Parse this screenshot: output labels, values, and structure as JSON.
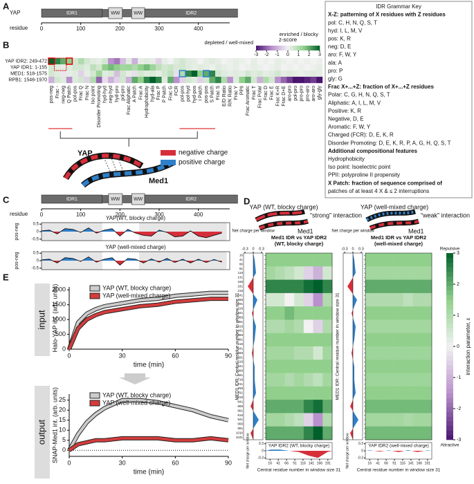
{
  "panel_labels": [
    "A",
    "B",
    "C",
    "D",
    "E"
  ],
  "panel_a": {
    "protein": "YAP",
    "domains": [
      "IDR1",
      "WW",
      "WW",
      "IDR2"
    ],
    "axis_label": "residue",
    "xlim": [
      0,
      480
    ],
    "xticks": [
      0,
      100,
      200,
      300,
      400
    ]
  },
  "key": {
    "lines": [
      {
        "text": "IDR Grammar Key",
        "bold": false
      },
      {
        "text": "X-Z: patterning of X residues with Z residues",
        "bold": true
      },
      {
        "text": "pol: C, H, N, Q, S, T",
        "bold": false
      },
      {
        "text": "hyd: I, L, M, V",
        "bold": false
      },
      {
        "text": "pos: K, R",
        "bold": false
      },
      {
        "text": "neg: D, E",
        "bold": false
      },
      {
        "text": "aro: F, W, Y",
        "bold": false
      },
      {
        "text": "ala: A",
        "bold": false
      },
      {
        "text": "pro: P",
        "bold": false
      },
      {
        "text": "gly: G",
        "bold": false
      },
      {
        "text": "Frac X+...+Z: fraction of X+...+Z residues",
        "bold": true
      },
      {
        "text": "Polar: C, G, H, N, Q, S, T",
        "bold": false
      },
      {
        "text": "Aliphatic: A, I, L, M, V",
        "bold": false
      },
      {
        "text": "Positive: K, R",
        "bold": false
      },
      {
        "text": "Negative, D, E",
        "bold": false
      },
      {
        "text": "Aromatic: F, W, Y",
        "bold": false
      },
      {
        "text": "Charged (FCR): D, E, K, R",
        "bold": false
      },
      {
        "text": "Disorder Promoting: D, E, K, R, P, A, G, H, Q, S, T",
        "bold": false
      },
      {
        "text": "Additional compositional features",
        "bold": true
      },
      {
        "text": "Hydrophobicity",
        "bold": false
      },
      {
        "text": "Iso point: Isoelectric point",
        "bold": false
      },
      {
        "text": "PPII: polyproline II propensity",
        "bold": false
      },
      {
        "text": "X Patch: fraction of sequence comprised of",
        "bold": true
      },
      {
        "text": "patches of at least 4 X &  ≤ 2 interruptions",
        "bold": false
      }
    ]
  },
  "panel_b": {
    "type": "heatmap",
    "rows": [
      "YAP IDR2: 249-472",
      "YAP IDR1: 1-155",
      "MED1: 518-1575",
      "RPB1: 1546-1970"
    ],
    "columns": [
      "pos-neg",
      "Frac -",
      "neg-neg",
      "Q Patch",
      "pol-pos",
      "Frac Q",
      "Frac N",
      "Iso point",
      "Disorder Promoting",
      "hyd-hyd",
      "neg-hyd",
      "hyd-pro",
      "pol-pro",
      "Frac Aliphatic",
      "A Patch",
      "Frac A",
      "Hydrophobicity",
      "hyd-ala",
      "Frac P",
      "P Patch",
      "Frac G",
      "FCR",
      "pol-pos",
      "pol-hyd",
      "hyd-pos",
      "I Patch",
      "pos-pos",
      "S Patch",
      "Frac S",
      "E/D Ratio",
      "R/K Ratio",
      "Frac Y",
      "PPII",
      "Frac Aromatic",
      "Frac T",
      "Frac Polar",
      "Frac D",
      "Frac E",
      "Frac K+R",
      "Frac D+E",
      "aro-pro",
      "pol-pro",
      "pro-pro",
      "pro-aro",
      "aro-aro",
      "gly-gly"
    ],
    "values": [
      [
        3,
        2.5,
        2,
        1.5,
        0.5,
        1,
        0.5,
        0.3,
        0.2,
        0.5,
        -1.5,
        -1.8,
        -0.8,
        0.3,
        -1,
        0.2,
        0.3,
        0.2,
        -0.5,
        0.2,
        0,
        0.3,
        0.5,
        0.3,
        0.2,
        0,
        0.2,
        0.3,
        0.2,
        0,
        0.1,
        0.2,
        0.1,
        0,
        0.2,
        0,
        0.1,
        0,
        0.2,
        0.1,
        0,
        0.1,
        0,
        0.1,
        0,
        0.1
      ],
      [
        0.5,
        0.3,
        0.2,
        0.3,
        0.5,
        0.5,
        0.3,
        0.8,
        0.5,
        1.5,
        1.8,
        1.5,
        1.2,
        1.3,
        1,
        1.5,
        1.8,
        1.3,
        0.8,
        0.5,
        0.6,
        0.4,
        0.5,
        0.3,
        0.2,
        0.3,
        0.2,
        0.1,
        0.3,
        0.2,
        0.1,
        0.2,
        0,
        0.1,
        0.2,
        0.1,
        0,
        0.1,
        0.2,
        0,
        0.1,
        0,
        0.1,
        0,
        0.1,
        0.2
      ],
      [
        0.5,
        0.3,
        -0.2,
        0.2,
        0.3,
        -0.5,
        0.2,
        0.5,
        1.3,
        0.3,
        0.4,
        -0.8,
        0.5,
        0.2,
        -0.3,
        0.5,
        0.3,
        0.4,
        0.2,
        0.5,
        0.8,
        -0.3,
        1,
        2.5,
        3,
        1.5,
        2,
        2.5,
        0.5,
        0.3,
        0.2,
        0.3,
        0.2,
        0.5,
        0.3,
        0.4,
        0.2,
        0.3,
        0.5,
        0.2,
        0.3,
        0.2,
        0.1,
        0.2,
        0.3,
        0.2
      ],
      [
        -1,
        0.5,
        0.3,
        -1.5,
        0.3,
        0.5,
        -0.5,
        1,
        -2,
        -0.3,
        -1,
        -0.5,
        0.5,
        -1,
        2,
        1.5,
        2.5,
        3,
        2.5,
        0.3,
        2,
        -1.5,
        -0.5,
        0.5,
        0.3,
        -0.5,
        0.5,
        2,
        2.5,
        1,
        -1.5,
        0.3,
        1.5,
        2,
        0.5,
        -1,
        1,
        0.5,
        -1.5,
        -2,
        -2.5,
        -3,
        -3,
        -2.8,
        -2.5,
        -3
      ]
    ],
    "colorbar": {
      "title": "z-score",
      "low_label": "depleted / well-mixed",
      "high_label": "enriched / blocky",
      "lim": [
        -3,
        3
      ],
      "ticks": [
        -3,
        -2,
        -1,
        0,
        1,
        2,
        3
      ]
    },
    "cartoon": {
      "protein1": "YAP",
      "protein2": "Med1",
      "legend": [
        {
          "name": "negative charge",
          "color": "#d62f3a"
        },
        {
          "name": "positive charge",
          "color": "#2f7fc9"
        }
      ]
    }
  },
  "panel_c": {
    "type": "line",
    "domains": [
      "IDR1",
      "WW",
      "WW",
      "IDR2"
    ],
    "axis_label": "residue",
    "xlim": [
      0,
      480
    ],
    "xticks": [
      0,
      100,
      200,
      300,
      400
    ],
    "x": [
      0,
      20,
      40,
      60,
      80,
      100,
      120,
      140,
      160,
      180,
      200,
      220,
      240,
      260,
      280,
      300,
      320,
      340,
      360,
      380,
      400,
      420,
      440,
      460
    ],
    "ylim": [
      -0.6,
      0.6
    ],
    "yticks": [
      0.5,
      0,
      -0.5
    ],
    "charts": [
      {
        "title": "YAP(WT, blocky charge)",
        "ylabel": "pos-neg",
        "values": [
          0.05,
          0.1,
          -0.15,
          0.2,
          0.15,
          -0.05,
          0.25,
          -0.1,
          0.1,
          0.2,
          -0.3,
          0.15,
          -0.1,
          -0.25,
          -0.3,
          0.1,
          -0.05,
          -0.35,
          -0.3,
          0.05,
          -0.3,
          -0.4,
          -0.25,
          -0.1
        ]
      },
      {
        "title": "YAP (well-mixed charge)",
        "ylabel": "pos-neg",
        "values": [
          0.05,
          0.1,
          -0.15,
          0.2,
          0.15,
          -0.05,
          0.25,
          -0.1,
          0.1,
          0.2,
          -0.3,
          0.15,
          0.1,
          -0.15,
          0.12,
          -0.1,
          0.15,
          -0.12,
          0.1,
          -0.15,
          0.1,
          -0.12,
          0.08,
          -0.1
        ]
      }
    ]
  },
  "panel_d": {
    "type": "heatmap",
    "cartoons": [
      {
        "title": "YAP (WT, blocky charge)",
        "interaction": "“strong” interaction",
        "partner": "Med1"
      },
      {
        "title": "YAP (well-mixed charge)",
        "interaction": "“weak” interaction",
        "partner": "Med1"
      }
    ],
    "xlim": [
      3,
      204
    ],
    "xticks": [
      16,
      41,
      66,
      91,
      116,
      141,
      166,
      191
    ],
    "ylim": [
      3,
      1054
    ],
    "yticks": [
      16,
      41,
      66,
      91,
      116,
      141,
      166,
      191,
      216,
      241,
      266,
      291,
      316,
      341,
      366,
      391,
      416,
      441,
      466,
      491,
      516,
      541,
      566,
      591,
      616,
      641,
      666,
      691,
      716,
      741,
      766,
      791,
      816,
      841,
      866,
      891,
      916,
      941,
      966,
      991,
      1016,
      1041
    ],
    "profile_lim": [
      -0.35,
      0.35
    ],
    "profile_ticks": [
      -0.3,
      0,
      0.3
    ],
    "med1_net_charge": [
      0.05,
      0.1,
      -0.2,
      0.15,
      -0.05,
      0.1,
      0.05,
      -0.05,
      0.05,
      0.05,
      0.1,
      -0.1,
      0.2,
      -0.1
    ],
    "maps": [
      {
        "title": [
          "Med1 IDR vs YAP IDR2",
          "(WT, blocky charge)"
        ],
        "ylabel": "MED1 IDR: Central residue number in window size 31",
        "side_profile_label": "Net charge per window",
        "bottom_profile_label": "Net charge per window",
        "bottom_label": "YAP IDR2 (WT, blocky charge)",
        "xlabel": "Central residue number in window size 31",
        "yap_net_charge": [
          0.05,
          0.05,
          0,
          -0.05,
          -0.2,
          -0.3,
          -0.05
        ],
        "values": [
          [
            1.5,
            1.5,
            1.5,
            1.5,
            1.5,
            1.5,
            1.5
          ],
          [
            1.2,
            1,
            0.8,
            0.5,
            -0.5,
            -1,
            0.5
          ],
          [
            2.5,
            2.5,
            2.5,
            2.5,
            2.8,
            3,
            2.5
          ],
          [
            0.5,
            0.5,
            0,
            0.5,
            -0.5,
            -1.5,
            1
          ],
          [
            1.5,
            1.5,
            1.8,
            1.5,
            1.5,
            1.5,
            1.5
          ],
          [
            1,
            1,
            1.2,
            1,
            0,
            -0.5,
            1
          ],
          [
            1.5,
            1.5,
            1.5,
            1.5,
            1.5,
            1.5,
            1.5
          ],
          [
            1.2,
            1.2,
            1.2,
            1,
            1,
            0.5,
            1.2
          ],
          [
            1.5,
            1.5,
            1.5,
            1.5,
            1.5,
            1.5,
            1.5
          ],
          [
            1.2,
            1.2,
            1,
            1.2,
            1,
            0.8,
            1.2
          ],
          [
            1.5,
            1.5,
            1.5,
            1.5,
            1.5,
            1.5,
            1.5
          ],
          [
            2,
            2,
            2,
            2,
            2.5,
            2.8,
            2
          ],
          [
            1.2,
            1.2,
            1,
            0.8,
            -0.5,
            -1.5,
            1
          ],
          [
            2,
            2,
            2,
            2,
            2.5,
            3,
            2
          ]
        ]
      },
      {
        "title": [
          "Med1 IDR vs YAP IDR2",
          "(well-mixed charge)"
        ],
        "ylabel": "MED1 IDR: Central residue number in window size 31",
        "side_profile_label": "Net charge per window",
        "bottom_profile_label": "Net charge per window",
        "bottom_label": "YAP IDR2 (well-mixed charge)",
        "xlabel": "Central residue number in window size 31",
        "yap_net_charge": [
          0.02,
          -0.03,
          0.02,
          -0.05,
          0.03,
          -0.05,
          0.02
        ],
        "values": [
          [
            1.5,
            1.5,
            1.5,
            1.5,
            1.5,
            1.5,
            1.5
          ],
          [
            1.2,
            1.2,
            1.2,
            1.2,
            1.2,
            1.2,
            1.2
          ],
          [
            2,
            2,
            2,
            2,
            2,
            2,
            2
          ],
          [
            1,
            1,
            1,
            1,
            0.8,
            1,
            1
          ],
          [
            1.5,
            1.5,
            1.5,
            1.5,
            1.5,
            1.5,
            1.5
          ],
          [
            1.2,
            1.2,
            1.2,
            1.2,
            1.2,
            1.2,
            1.2
          ],
          [
            1.5,
            1.5,
            1.5,
            1.5,
            1.5,
            1.5,
            1.5
          ],
          [
            1.3,
            1.3,
            1.3,
            1.3,
            1.3,
            1.3,
            1.3
          ],
          [
            1.5,
            1.5,
            1.5,
            1.5,
            1.5,
            1.5,
            1.5
          ],
          [
            1.3,
            1.3,
            1.3,
            1.3,
            1.3,
            1.3,
            1.3
          ],
          [
            1.5,
            1.5,
            1.5,
            1.5,
            1.5,
            1.5,
            1.5
          ],
          [
            1.8,
            1.8,
            1.8,
            1.8,
            1.8,
            1.8,
            1.8
          ],
          [
            1.2,
            1.2,
            1.2,
            1.2,
            1.1,
            1.2,
            1.2
          ],
          [
            1.8,
            1.8,
            1.8,
            1.8,
            1.8,
            1.8,
            1.8
          ]
        ]
      }
    ],
    "colorbar": {
      "high_label": "Repulsive",
      "low_label": "Attractive",
      "title": "interaction parameter, ε",
      "lim": [
        -3,
        3
      ],
      "ticks": [
        3,
        2,
        1,
        0,
        -1,
        -2,
        -3
      ]
    }
  },
  "panel_e": {
    "type": "line",
    "charts": [
      {
        "side_label": "input",
        "ylabel": "Halo-YAP int. (arb. units)",
        "xlabel": "time (min)",
        "x": [
          0,
          5,
          10,
          15,
          20,
          30,
          40,
          50,
          60,
          70,
          80,
          90
        ],
        "xlim": [
          0,
          90
        ],
        "xticks": [
          0,
          30,
          60,
          90
        ],
        "ylim": [
          0,
          2100
        ],
        "yticks": [
          0,
          500,
          1000,
          1500,
          2000
        ],
        "series": [
          {
            "name": "YAP (WT, blocky charge)",
            "color": "#cccccc",
            "values": [
              0,
              900,
              1200,
              1350,
              1450,
              1550,
              1650,
              1700,
              1800,
              1850,
              1900,
              1900
            ]
          },
          {
            "name": "YAP (well-mixed charge)",
            "color": "#d43c3c",
            "values": [
              0,
              700,
              1000,
              1150,
              1250,
              1350,
              1450,
              1500,
              1600,
              1650,
              1700,
              1700
            ]
          }
        ]
      },
      {
        "side_label": "output",
        "ylabel": "SNAP-Med1 int. (arb. units)",
        "xlabel": "time (min)",
        "x": [
          0,
          5,
          10,
          15,
          20,
          30,
          40,
          50,
          60,
          70,
          80,
          90
        ],
        "xlim": [
          0,
          90
        ],
        "xticks": [
          0,
          30,
          60,
          90
        ],
        "ylim": [
          -3,
          28
        ],
        "yticks": [
          0,
          5,
          10,
          15,
          20,
          25
        ],
        "series": [
          {
            "name": "YAP (WT, blocky charge)",
            "color": "#cccccc",
            "values": [
              0,
              8,
              14,
              18,
              21,
              25,
              25,
              24,
              22,
              20,
              17,
              15
            ]
          },
          {
            "name": "YAP (well-mixed charge)",
            "color": "#d43c3c",
            "values": [
              0,
              3,
              4,
              5,
              5,
              6,
              6,
              6,
              5,
              5,
              6,
              5
            ]
          }
        ]
      }
    ]
  }
}
